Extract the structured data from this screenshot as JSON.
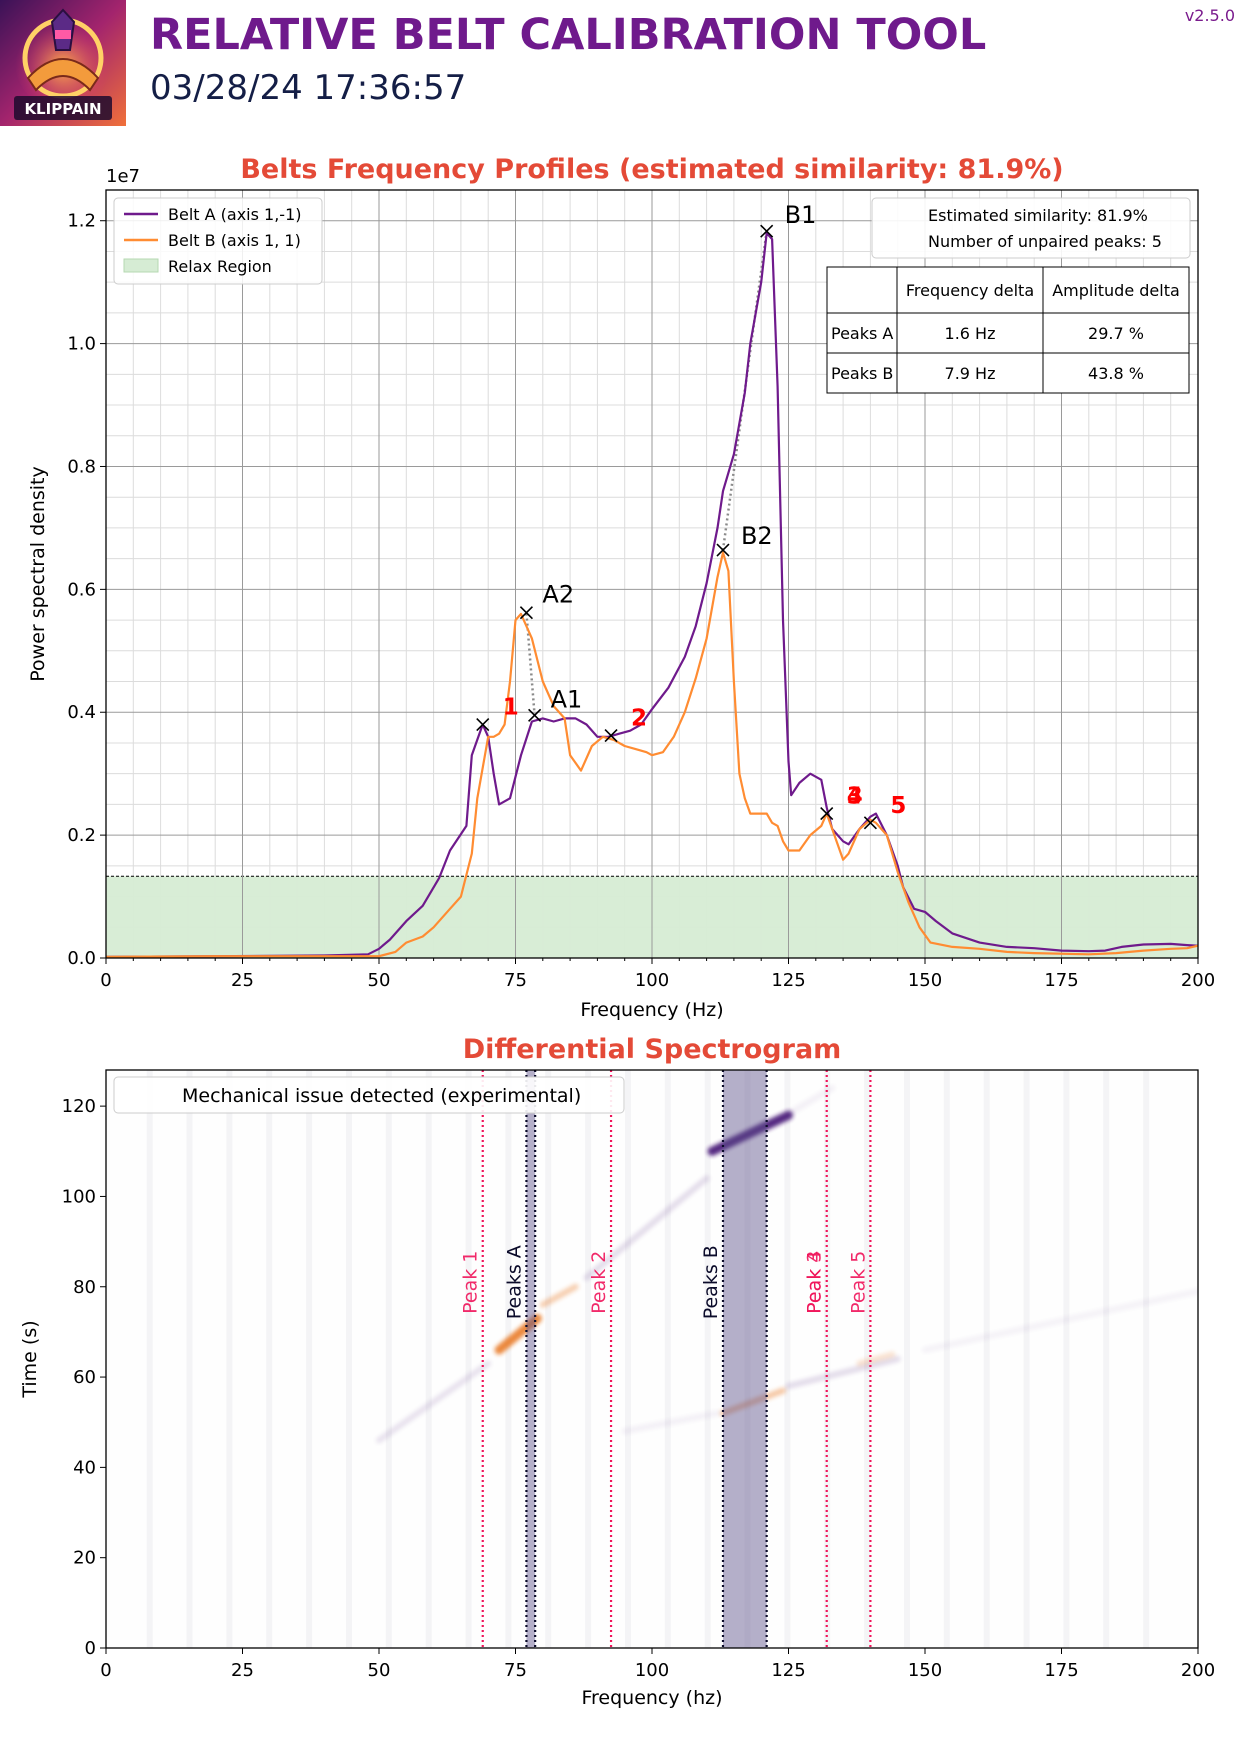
{
  "header": {
    "title": "RELATIVE BELT CALIBRATION TOOL",
    "timestamp": "03/28/24 17:36:57",
    "version": "v2.5.0",
    "logo_text": "KLIPPAIN"
  },
  "colors": {
    "belt_a": "#6f1a8c",
    "belt_b": "#ff8c32",
    "relax": "#d6ecd4",
    "title_red": "#e44a37",
    "peak_label_red": "#ff0000",
    "unpaired_line": "#f0145a",
    "peak_band": "#b5b0c8"
  },
  "chart_data": [
    {
      "type": "line",
      "title": "Belts Frequency Profiles (estimated similarity: 81.9%)",
      "xlabel": "Frequency (Hz)",
      "ylabel": "Power spectral density",
      "y_multiplier": "1e7",
      "xlim": [
        0,
        200
      ],
      "ylim": [
        0,
        1.25
      ],
      "xticks": [
        0,
        25,
        50,
        75,
        100,
        125,
        150,
        175,
        200
      ],
      "yticks": [
        0.0,
        0.2,
        0.4,
        0.6,
        0.8,
        1.0,
        1.2
      ],
      "grid": true,
      "legend": {
        "placement": "top-left",
        "entries": [
          "Belt A (axis 1,-1)",
          "Belt B (axis 1, 1)",
          "Relax Region"
        ]
      },
      "relax_region": 0.133,
      "series": [
        {
          "name": "Belt A (axis 1,-1)",
          "points": [
            [
              0,
              0.002
            ],
            [
              20,
              0.003
            ],
            [
              40,
              0.004
            ],
            [
              48,
              0.006
            ],
            [
              50,
              0.015
            ],
            [
              52,
              0.03
            ],
            [
              55,
              0.06
            ],
            [
              58,
              0.085
            ],
            [
              61,
              0.13
            ],
            [
              63,
              0.175
            ],
            [
              66,
              0.215
            ],
            [
              67,
              0.33
            ],
            [
              69,
              0.38
            ],
            [
              70,
              0.36
            ],
            [
              71,
              0.3
            ],
            [
              72,
              0.25
            ],
            [
              74,
              0.26
            ],
            [
              76,
              0.33
            ],
            [
              78,
              0.385
            ],
            [
              80,
              0.39
            ],
            [
              82,
              0.385
            ],
            [
              84,
              0.39
            ],
            [
              86,
              0.39
            ],
            [
              88,
              0.38
            ],
            [
              90,
              0.36
            ],
            [
              92,
              0.36
            ],
            [
              94,
              0.365
            ],
            [
              96,
              0.37
            ],
            [
              98,
              0.38
            ],
            [
              100,
              0.405
            ],
            [
              103,
              0.44
            ],
            [
              106,
              0.49
            ],
            [
              108,
              0.54
            ],
            [
              110,
              0.61
            ],
            [
              112,
              0.7
            ],
            [
              113,
              0.76
            ],
            [
              115,
              0.82
            ],
            [
              117,
              0.92
            ],
            [
              118,
              1.0
            ],
            [
              120,
              1.1
            ],
            [
              121,
              1.18
            ],
            [
              122,
              1.17
            ],
            [
              123,
              0.93
            ],
            [
              124,
              0.55
            ],
            [
              125,
              0.32
            ],
            [
              125.5,
              0.265
            ],
            [
              127,
              0.285
            ],
            [
              129,
              0.3
            ],
            [
              131,
              0.29
            ],
            [
              132,
              0.245
            ],
            [
              133,
              0.21
            ],
            [
              135,
              0.19
            ],
            [
              136,
              0.185
            ],
            [
              138,
              0.21
            ],
            [
              140,
              0.23
            ],
            [
              141,
              0.235
            ],
            [
              143,
              0.2
            ],
            [
              145,
              0.15
            ],
            [
              146,
              0.115
            ],
            [
              148,
              0.08
            ],
            [
              150,
              0.075
            ],
            [
              152,
              0.06
            ],
            [
              155,
              0.04
            ],
            [
              160,
              0.025
            ],
            [
              165,
              0.018
            ],
            [
              170,
              0.016
            ],
            [
              175,
              0.012
            ],
            [
              180,
              0.011
            ],
            [
              183,
              0.012
            ],
            [
              186,
              0.018
            ],
            [
              190,
              0.022
            ],
            [
              195,
              0.023
            ],
            [
              198,
              0.021
            ],
            [
              200,
              0.02
            ]
          ]
        },
        {
          "name": "Belt B (axis 1, 1)",
          "points": [
            [
              0,
              0.002
            ],
            [
              20,
              0.003
            ],
            [
              40,
              0.003
            ],
            [
              50,
              0.003
            ],
            [
              53,
              0.01
            ],
            [
              55,
              0.025
            ],
            [
              58,
              0.035
            ],
            [
              60,
              0.05
            ],
            [
              63,
              0.08
            ],
            [
              65,
              0.1
            ],
            [
              67,
              0.17
            ],
            [
              68,
              0.26
            ],
            [
              70,
              0.36
            ],
            [
              71,
              0.36
            ],
            [
              72,
              0.365
            ],
            [
              73,
              0.38
            ],
            [
              74,
              0.45
            ],
            [
              75,
              0.55
            ],
            [
              76,
              0.56
            ],
            [
              78,
              0.52
            ],
            [
              80,
              0.45
            ],
            [
              82,
              0.41
            ],
            [
              84,
              0.39
            ],
            [
              85,
              0.33
            ],
            [
              87,
              0.305
            ],
            [
              89,
              0.345
            ],
            [
              91,
              0.36
            ],
            [
              93,
              0.355
            ],
            [
              95,
              0.345
            ],
            [
              97,
              0.34
            ],
            [
              99,
              0.335
            ],
            [
              100,
              0.33
            ],
            [
              102,
              0.335
            ],
            [
              104,
              0.36
            ],
            [
              106,
              0.4
            ],
            [
              108,
              0.455
            ],
            [
              110,
              0.52
            ],
            [
              112,
              0.62
            ],
            [
              113,
              0.66
            ],
            [
              114,
              0.63
            ],
            [
              115,
              0.45
            ],
            [
              116,
              0.3
            ],
            [
              117,
              0.26
            ],
            [
              118,
              0.235
            ],
            [
              120,
              0.235
            ],
            [
              121,
              0.235
            ],
            [
              122,
              0.22
            ],
            [
              123,
              0.215
            ],
            [
              124,
              0.19
            ],
            [
              125,
              0.175
            ],
            [
              127,
              0.175
            ],
            [
              129,
              0.2
            ],
            [
              131,
              0.215
            ],
            [
              132,
              0.235
            ],
            [
              133,
              0.21
            ],
            [
              135,
              0.16
            ],
            [
              136,
              0.17
            ],
            [
              138,
              0.21
            ],
            [
              140,
              0.225
            ],
            [
              141,
              0.22
            ],
            [
              143,
              0.2
            ],
            [
              145,
              0.14
            ],
            [
              147,
              0.09
            ],
            [
              149,
              0.05
            ],
            [
              151,
              0.025
            ],
            [
              155,
              0.018
            ],
            [
              160,
              0.015
            ],
            [
              165,
              0.01
            ],
            [
              170,
              0.008
            ],
            [
              180,
              0.006
            ],
            [
              185,
              0.008
            ],
            [
              190,
              0.012
            ],
            [
              195,
              0.015
            ],
            [
              198,
              0.016
            ],
            [
              200,
              0.02
            ]
          ]
        }
      ],
      "paired_peaks": [
        {
          "label": "A1",
          "freq": 78.5,
          "psd": 0.395
        },
        {
          "label": "A2",
          "freq": 77,
          "psd": 0.562
        },
        {
          "label": "B1",
          "freq": 121,
          "psd": 1.183
        },
        {
          "label": "B2",
          "freq": 113,
          "psd": 0.664
        }
      ],
      "unpaired_peaks": [
        {
          "label": "1",
          "freq": 69,
          "psd": 0.38
        },
        {
          "label": "2",
          "freq": 92.5,
          "psd": 0.362
        },
        {
          "label": "3",
          "freq": 132,
          "psd": 0.235
        },
        {
          "label": "4",
          "freq": 132,
          "psd": 0.235
        },
        {
          "label": "5",
          "freq": 140,
          "psd": 0.22
        }
      ],
      "info_box": {
        "similarity_text": "Estimated similarity: 81.9%",
        "unpaired_text": "Number of unpaired peaks: 5"
      },
      "table": {
        "headers": [
          "",
          "Frequency delta",
          "Amplitude delta"
        ],
        "rows": [
          [
            "Peaks A",
            "1.6 Hz",
            "29.7 %"
          ],
          [
            "Peaks B",
            "7.9 Hz",
            "43.8 %"
          ]
        ]
      }
    },
    {
      "type": "heatmap",
      "title": "Differential Spectrogram",
      "xlabel": "Frequency (hz)",
      "ylabel": "Time (s)",
      "xlim": [
        0,
        200
      ],
      "ylim": [
        0,
        128
      ],
      "xticks": [
        0,
        25,
        50,
        75,
        100,
        125,
        150,
        175,
        200
      ],
      "yticks": [
        0,
        20,
        40,
        60,
        80,
        100,
        120
      ],
      "legend": {
        "placement": "top-left",
        "entries": [
          "Mechanical issue detected (experimental)"
        ]
      },
      "peak_bands": [
        {
          "label": "Peaks A",
          "from": 77,
          "to": 78.6
        },
        {
          "label": "Peaks B",
          "from": 113,
          "to": 121
        }
      ],
      "unpaired_lines": [
        {
          "label": "Peak 1",
          "freq": 69
        },
        {
          "label": "Peak 2",
          "freq": 92.5
        },
        {
          "label": "Peak 3",
          "freq": 132
        },
        {
          "label": "Peak 4",
          "freq": 132
        },
        {
          "label": "Peak 5",
          "freq": 140
        }
      ],
      "streaks": [
        {
          "kind": "belt_a",
          "f1": 50,
          "t1": 46,
          "f2": 70,
          "t2": 63,
          "strength": 0.12
        },
        {
          "kind": "belt_b",
          "f1": 72,
          "t1": 66,
          "f2": 79,
          "t2": 73,
          "strength": 0.85
        },
        {
          "kind": "belt_b",
          "f1": 80,
          "t1": 76,
          "f2": 86,
          "t2": 80,
          "strength": 0.35
        },
        {
          "kind": "belt_a",
          "f1": 88,
          "t1": 82,
          "f2": 110,
          "t2": 104,
          "strength": 0.15
        },
        {
          "kind": "belt_a",
          "f1": 111,
          "t1": 110,
          "f2": 125,
          "t2": 118,
          "strength": 0.95
        },
        {
          "kind": "belt_b",
          "f1": 113,
          "t1": 52,
          "f2": 124,
          "t2": 57,
          "strength": 0.4
        },
        {
          "kind": "belt_a",
          "f1": 125,
          "t1": 58,
          "f2": 145,
          "t2": 64,
          "strength": 0.15
        },
        {
          "kind": "belt_b",
          "f1": 138,
          "t1": 63,
          "f2": 144,
          "t2": 65,
          "strength": 0.2
        },
        {
          "kind": "belt_a",
          "f1": 95,
          "t1": 48,
          "f2": 112,
          "t2": 52,
          "strength": 0.06
        },
        {
          "kind": "belt_a",
          "f1": 126,
          "t1": 119,
          "f2": 133,
          "t2": 124,
          "strength": 0.06
        },
        {
          "kind": "belt_a",
          "f1": 150,
          "t1": 66,
          "f2": 200,
          "t2": 79,
          "strength": 0.05
        }
      ]
    }
  ]
}
